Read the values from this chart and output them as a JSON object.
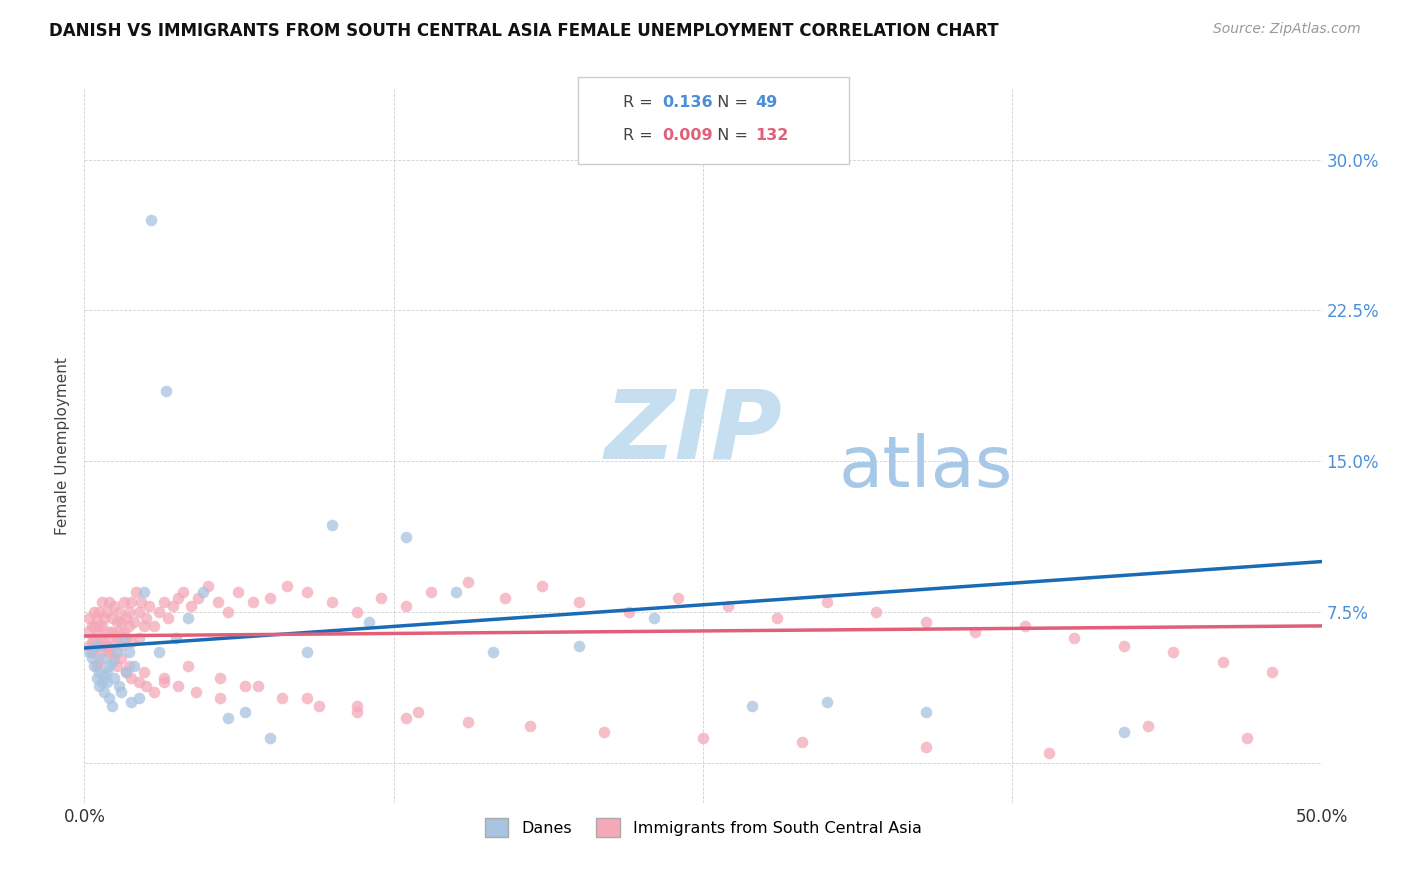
{
  "title": "DANISH VS IMMIGRANTS FROM SOUTH CENTRAL ASIA FEMALE UNEMPLOYMENT CORRELATION CHART",
  "source": "Source: ZipAtlas.com",
  "ylabel": "Female Unemployment",
  "xlim": [
    0.0,
    0.5
  ],
  "ylim": [
    -0.02,
    0.335
  ],
  "yticks": [
    0.0,
    0.075,
    0.15,
    0.225,
    0.3
  ],
  "ytick_labels": [
    "",
    "7.5%",
    "15.0%",
    "22.5%",
    "30.0%"
  ],
  "xticks": [
    0.0,
    0.125,
    0.25,
    0.375,
    0.5
  ],
  "xtick_labels": [
    "0.0%",
    "",
    "",
    "",
    "50.0%"
  ],
  "danes_R": "0.136",
  "danes_N": "49",
  "immigrants_R": "0.009",
  "immigrants_N": "132",
  "danes_color": "#a8c4e0",
  "immigrants_color": "#f4a8b8",
  "danes_line_color": "#1a6bb5",
  "immigrants_line_color": "#e0607a",
  "watermark_zip": "ZIP",
  "watermark_atlas": "atlas",
  "watermark_color_zip": "#c5dff0",
  "watermark_color_atlas": "#a8c8e8",
  "danes_x": [
    0.002,
    0.003,
    0.004,
    0.005,
    0.005,
    0.006,
    0.006,
    0.007,
    0.007,
    0.008,
    0.008,
    0.009,
    0.009,
    0.01,
    0.01,
    0.011,
    0.011,
    0.012,
    0.013,
    0.014,
    0.015,
    0.016,
    0.017,
    0.018,
    0.019,
    0.02,
    0.022,
    0.024,
    0.027,
    0.03,
    0.033,
    0.037,
    0.042,
    0.048,
    0.058,
    0.065,
    0.075,
    0.09,
    0.1,
    0.115,
    0.13,
    0.15,
    0.165,
    0.2,
    0.23,
    0.27,
    0.3,
    0.34,
    0.42
  ],
  "danes_y": [
    0.055,
    0.052,
    0.048,
    0.058,
    0.042,
    0.045,
    0.038,
    0.052,
    0.04,
    0.043,
    0.035,
    0.045,
    0.04,
    0.048,
    0.032,
    0.05,
    0.028,
    0.042,
    0.055,
    0.038,
    0.035,
    0.062,
    0.045,
    0.055,
    0.03,
    0.048,
    0.032,
    0.085,
    0.27,
    0.055,
    0.185,
    0.062,
    0.072,
    0.085,
    0.022,
    0.025,
    0.012,
    0.055,
    0.118,
    0.07,
    0.112,
    0.085,
    0.055,
    0.058,
    0.072,
    0.028,
    0.03,
    0.025,
    0.015
  ],
  "immigrants_x": [
    0.001,
    0.002,
    0.002,
    0.003,
    0.003,
    0.003,
    0.004,
    0.004,
    0.005,
    0.005,
    0.005,
    0.006,
    0.006,
    0.006,
    0.007,
    0.007,
    0.007,
    0.008,
    0.008,
    0.009,
    0.009,
    0.01,
    0.01,
    0.01,
    0.011,
    0.011,
    0.012,
    0.012,
    0.013,
    0.013,
    0.014,
    0.014,
    0.015,
    0.015,
    0.016,
    0.016,
    0.017,
    0.017,
    0.018,
    0.018,
    0.019,
    0.019,
    0.02,
    0.021,
    0.022,
    0.022,
    0.023,
    0.024,
    0.025,
    0.026,
    0.028,
    0.03,
    0.032,
    0.034,
    0.036,
    0.038,
    0.04,
    0.043,
    0.046,
    0.05,
    0.054,
    0.058,
    0.062,
    0.068,
    0.075,
    0.082,
    0.09,
    0.1,
    0.11,
    0.12,
    0.13,
    0.14,
    0.155,
    0.17,
    0.185,
    0.2,
    0.22,
    0.24,
    0.26,
    0.28,
    0.3,
    0.32,
    0.34,
    0.36,
    0.38,
    0.4,
    0.42,
    0.44,
    0.46,
    0.48,
    0.003,
    0.005,
    0.007,
    0.009,
    0.011,
    0.013,
    0.015,
    0.017,
    0.019,
    0.022,
    0.025,
    0.028,
    0.032,
    0.038,
    0.045,
    0.055,
    0.065,
    0.08,
    0.095,
    0.11,
    0.13,
    0.155,
    0.18,
    0.21,
    0.25,
    0.29,
    0.34,
    0.39,
    0.43,
    0.47,
    0.004,
    0.008,
    0.012,
    0.018,
    0.024,
    0.032,
    0.042,
    0.055,
    0.07,
    0.09,
    0.11,
    0.135
  ],
  "immigrants_y": [
    0.065,
    0.058,
    0.072,
    0.06,
    0.068,
    0.055,
    0.062,
    0.075,
    0.058,
    0.065,
    0.072,
    0.05,
    0.068,
    0.075,
    0.055,
    0.068,
    0.08,
    0.062,
    0.072,
    0.058,
    0.075,
    0.065,
    0.08,
    0.055,
    0.072,
    0.065,
    0.06,
    0.078,
    0.062,
    0.07,
    0.065,
    0.075,
    0.058,
    0.07,
    0.065,
    0.08,
    0.062,
    0.072,
    0.068,
    0.075,
    0.06,
    0.08,
    0.07,
    0.085,
    0.062,
    0.075,
    0.08,
    0.068,
    0.072,
    0.078,
    0.068,
    0.075,
    0.08,
    0.072,
    0.078,
    0.082,
    0.085,
    0.078,
    0.082,
    0.088,
    0.08,
    0.075,
    0.085,
    0.08,
    0.082,
    0.088,
    0.085,
    0.08,
    0.075,
    0.082,
    0.078,
    0.085,
    0.09,
    0.082,
    0.088,
    0.08,
    0.075,
    0.082,
    0.078,
    0.072,
    0.08,
    0.075,
    0.07,
    0.065,
    0.068,
    0.062,
    0.058,
    0.055,
    0.05,
    0.045,
    0.055,
    0.048,
    0.062,
    0.058,
    0.055,
    0.048,
    0.052,
    0.045,
    0.042,
    0.04,
    0.038,
    0.035,
    0.042,
    0.038,
    0.035,
    0.032,
    0.038,
    0.032,
    0.028,
    0.025,
    0.022,
    0.02,
    0.018,
    0.015,
    0.012,
    0.01,
    0.008,
    0.005,
    0.018,
    0.012,
    0.068,
    0.058,
    0.052,
    0.048,
    0.045,
    0.04,
    0.048,
    0.042,
    0.038,
    0.032,
    0.028,
    0.025
  ]
}
